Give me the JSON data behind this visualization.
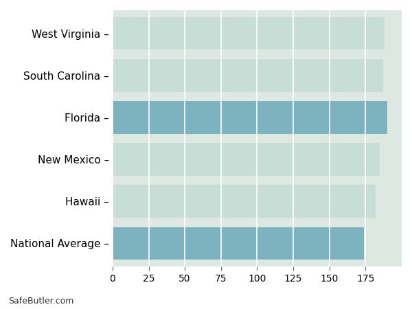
{
  "categories": [
    "West Virginia",
    "South Carolina",
    "Florida",
    "New Mexico",
    "Hawaii",
    "National Average"
  ],
  "values": [
    188,
    187,
    190,
    185,
    182,
    174
  ],
  "bar_colors": [
    "#c8ddd5",
    "#c8ddd5",
    "#7db3bf",
    "#c8ddd5",
    "#c8ddd5",
    "#7db3bf"
  ],
  "background_color": "#ffffff",
  "plot_bg_color": "#dde8e3",
  "grid_color": "#ffffff",
  "xlim": [
    0,
    200
  ],
  "xticks": [
    0,
    25,
    50,
    75,
    100,
    125,
    150,
    175
  ],
  "footnote": "SafeButler.com",
  "tick_fontsize": 10,
  "label_fontsize": 11,
  "bar_height": 0.78
}
